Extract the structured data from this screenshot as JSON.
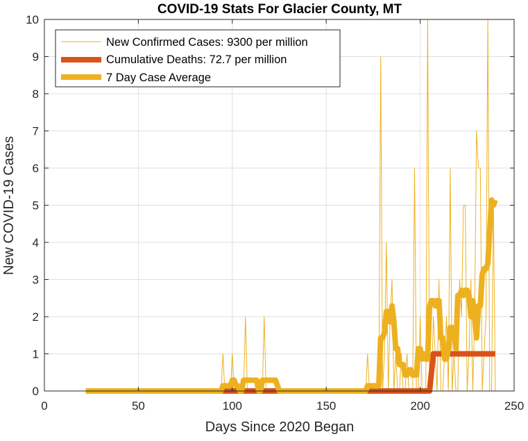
{
  "chart_data": {
    "type": "line",
    "title": "COVID-19 Stats For Glacier County, MT",
    "xlabel": "Days Since 2020 Began",
    "ylabel": "New COVID-19 Cases",
    "xlim": [
      0,
      250
    ],
    "ylim": [
      0,
      10
    ],
    "xticks": [
      "0",
      "50",
      "100",
      "150",
      "200",
      "250"
    ],
    "yticks": [
      "0",
      "1",
      "2",
      "3",
      "4",
      "5",
      "6",
      "7",
      "8",
      "9",
      "10"
    ],
    "grid": true,
    "legend_position": "top-left",
    "series": [
      {
        "name": "New Confirmed Cases: 9300 per million",
        "color": "#EDB120",
        "style": "thin",
        "x": [
          22,
          94,
          95,
          96,
          99,
          100,
          101,
          106,
          107,
          108,
          116,
          117,
          118,
          171,
          172,
          173,
          178,
          179,
          180,
          181,
          182,
          183,
          184,
          185,
          186,
          187,
          188,
          189,
          190,
          191,
          192,
          193,
          194,
          195,
          196,
          197,
          198,
          199,
          200,
          201,
          202,
          203,
          204,
          205,
          206,
          207,
          208,
          209,
          210,
          211,
          212,
          213,
          214,
          215,
          216,
          217,
          218,
          219,
          220,
          221,
          222,
          223,
          224,
          225,
          226,
          227,
          228,
          229,
          230,
          231,
          232,
          233,
          234,
          235,
          236,
          237,
          238,
          239,
          240
        ],
        "y": [
          0,
          0,
          1,
          0,
          0,
          1,
          0,
          0,
          2,
          0,
          0,
          2,
          0,
          0,
          1,
          0,
          0,
          9,
          0,
          1,
          4,
          0,
          2,
          3,
          0,
          1,
          0,
          0,
          1,
          0,
          0,
          1,
          0,
          0,
          0,
          6,
          0,
          0,
          2,
          0,
          0,
          0,
          10,
          0,
          0,
          2,
          1,
          0,
          3,
          0,
          0,
          1,
          2,
          0,
          6,
          0,
          1,
          0,
          0,
          3,
          2,
          5,
          5,
          0,
          1,
          3,
          0,
          2,
          7,
          6,
          6,
          0,
          1,
          2,
          10,
          0,
          0,
          5,
          0
        ]
      },
      {
        "name": "Cumulative Deaths: 72.7 per million",
        "color": "#D95319",
        "style": "thick",
        "x": [
          22,
          205,
          207,
          240
        ],
        "y": [
          0,
          0,
          1,
          1
        ]
      },
      {
        "name": "7 Day Case Average",
        "color": "#EDB120",
        "style": "thick",
        "x": [
          22,
          94,
          95,
          99,
          100,
          101,
          102,
          103,
          104,
          105,
          106,
          107,
          113,
          114,
          115,
          116,
          117,
          119,
          120,
          122,
          123,
          125,
          171,
          172,
          173,
          178,
          179,
          180,
          181,
          182,
          183,
          184,
          185,
          186,
          187,
          188,
          189,
          190,
          191,
          192,
          193,
          194,
          195,
          196,
          197,
          198,
          199,
          200,
          201,
          202,
          203,
          204,
          205,
          206,
          207,
          208,
          209,
          210,
          211,
          212,
          213,
          214,
          215,
          216,
          217,
          218,
          219,
          220,
          221,
          222,
          223,
          224,
          225,
          226,
          227,
          228,
          229,
          230,
          231,
          232,
          233,
          234,
          235,
          236,
          237,
          238,
          239,
          240
        ],
        "y": [
          0,
          0,
          0.14,
          0.14,
          0.29,
          0.29,
          0.14,
          0.14,
          0,
          0,
          0.29,
          0.29,
          0.29,
          0,
          0,
          0.29,
          0.29,
          0.29,
          0.29,
          0.29,
          0.29,
          0,
          0,
          0.14,
          0.14,
          0.14,
          1.43,
          1.43,
          1.57,
          2.14,
          2.14,
          1.86,
          2.29,
          1.86,
          1.14,
          1.14,
          0.71,
          0.71,
          0.71,
          0.43,
          0.43,
          0.57,
          0.57,
          0.43,
          0.43,
          0.43,
          1.14,
          1.14,
          0.86,
          1.0,
          0.86,
          0.86,
          2.29,
          2.43,
          2.43,
          2.29,
          2.43,
          2.43,
          1.43,
          1.43,
          0.86,
          0.86,
          1.14,
          1.71,
          1.71,
          1.57,
          1.14,
          2.57,
          2.57,
          2.71,
          2.57,
          2.71,
          2.71,
          2.57,
          2.0,
          2.43,
          2.0,
          1.43,
          2.29,
          2.29,
          3.14,
          3.29,
          3.29,
          3.43,
          4.29,
          5.14,
          5.0,
          5.14
        ]
      }
    ]
  }
}
